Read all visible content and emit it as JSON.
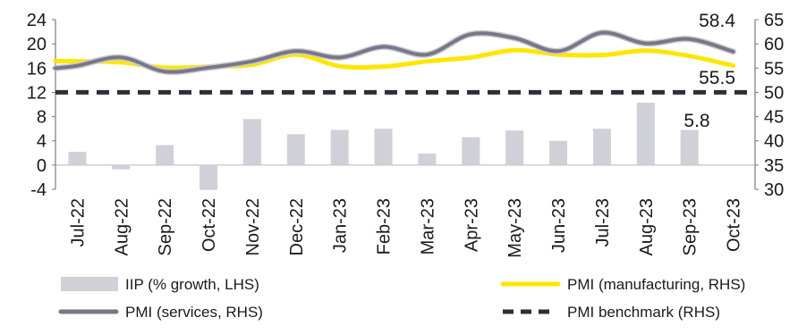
{
  "chart_data": {
    "type": "bar+line",
    "categories": [
      "Jul-22",
      "Aug-22",
      "Sep-22",
      "Oct-22",
      "Nov-22",
      "Dec-22",
      "Jan-23",
      "Feb-23",
      "Mar-23",
      "Apr-23",
      "May-23",
      "Jun-23",
      "Jul-23",
      "Aug-23",
      "Sep-23",
      "Oct-23"
    ],
    "left_axis": {
      "ylim": [
        -4,
        24
      ],
      "ticks": [
        "24",
        "20",
        "16",
        "12",
        "8",
        "4",
        "0",
        "-4"
      ]
    },
    "right_axis": {
      "ylim": [
        30,
        65
      ],
      "ticks": [
        "65",
        "60",
        "55",
        "50",
        "45",
        "40",
        "35",
        "30"
      ]
    },
    "series": [
      {
        "name": "IIP (% growth, LHS)",
        "type": "bar",
        "axis": "left",
        "color": "#d0d0d8",
        "values": [
          2.2,
          -0.7,
          3.3,
          -4.1,
          7.6,
          5.1,
          5.8,
          6.0,
          1.9,
          4.6,
          5.7,
          4.0,
          6.0,
          10.3,
          5.8,
          null
        ]
      },
      {
        "name": "PMI (manufacturing, RHS)",
        "type": "line",
        "axis": "right",
        "color": "#ffe600",
        "values": [
          56.4,
          56.2,
          55.1,
          55.3,
          55.7,
          57.8,
          55.4,
          55.3,
          56.4,
          57.2,
          58.7,
          57.8,
          57.7,
          58.6,
          57.5,
          55.5
        ]
      },
      {
        "name": "PMI (services, RHS)",
        "type": "line",
        "axis": "right",
        "color": "#777787",
        "values": [
          55.5,
          57.2,
          54.3,
          55.1,
          56.4,
          58.5,
          57.2,
          59.4,
          57.8,
          62.0,
          61.2,
          58.5,
          62.3,
          60.1,
          61.0,
          58.4
        ]
      },
      {
        "name": "PMI benchmark (RHS)",
        "type": "line",
        "axis": "right",
        "color": "#2e2e38",
        "dashed": true,
        "values": [
          50,
          50,
          50,
          50,
          50,
          50,
          50,
          50,
          50,
          50,
          50,
          50,
          50,
          50,
          50,
          50
        ]
      }
    ],
    "annotations": [
      "58.4",
      "55.5",
      "5.8"
    ],
    "legend_placement": "bottom",
    "grid": false
  }
}
